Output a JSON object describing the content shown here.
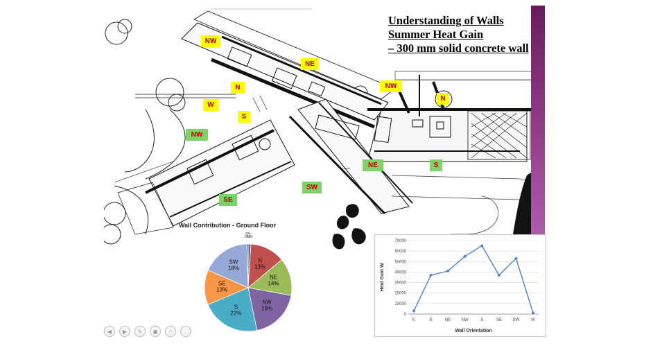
{
  "slide": {
    "title_lines": [
      "Understanding of  Walls",
      "Summer Heat Gain",
      "– 300 mm solid concrete wall"
    ],
    "accent_color": "#6a1b5e",
    "yellow_labels": [
      "NW",
      "NE",
      "N",
      "W",
      "S",
      "NW",
      "N"
    ],
    "green_labels": [
      "NW",
      "NE",
      "S",
      "SW",
      "SE"
    ]
  },
  "chart_data": [
    {
      "type": "pie",
      "title": "Wall Contribution - Ground Floor",
      "slices": [
        {
          "label": "E",
          "value": 1,
          "text": "E\n1%",
          "color": "#4a6fa5"
        },
        {
          "label": "N",
          "value": 13,
          "text": "N\n13%",
          "color": "#c0504d"
        },
        {
          "label": "NE",
          "value": 14,
          "text": "NE\n14%",
          "color": "#9bbb59"
        },
        {
          "label": "NW",
          "value": 19,
          "text": "NW\n19%",
          "color": "#8064a2"
        },
        {
          "label": "S",
          "value": 22,
          "text": "S\n22%",
          "color": "#4bacc6"
        },
        {
          "label": "SE",
          "value": 13,
          "text": "SE\n13%",
          "color": "#f79646"
        },
        {
          "label": "SW",
          "value": 18,
          "text": "SW\n18%",
          "color": "#95a9d6"
        },
        {
          "label": "W",
          "value": 0.5,
          "text": "W\n0%",
          "color": "#2c4d75"
        }
      ]
    },
    {
      "type": "line",
      "xlabel": "Wall Orientation",
      "ylabel": "Heat Gain W",
      "categories": [
        "E",
        "N",
        "NE",
        "NW",
        "S",
        "SE",
        "SW",
        "W"
      ],
      "values": [
        3000,
        37000,
        41000,
        55000,
        65000,
        37000,
        53000,
        1000
      ],
      "ylim": [
        0,
        70000
      ],
      "yticks": [
        0,
        10000,
        20000,
        30000,
        40000,
        50000,
        60000,
        70000
      ],
      "color": "#4f81bd",
      "grid": true
    }
  ],
  "nav_icons": [
    "previous-icon",
    "next-icon",
    "pen-icon",
    "slides-icon",
    "zoom-icon",
    "more-icon"
  ],
  "nav_glyphs": [
    "◀",
    "▶",
    "✎",
    "▣",
    "⌕",
    "…"
  ]
}
